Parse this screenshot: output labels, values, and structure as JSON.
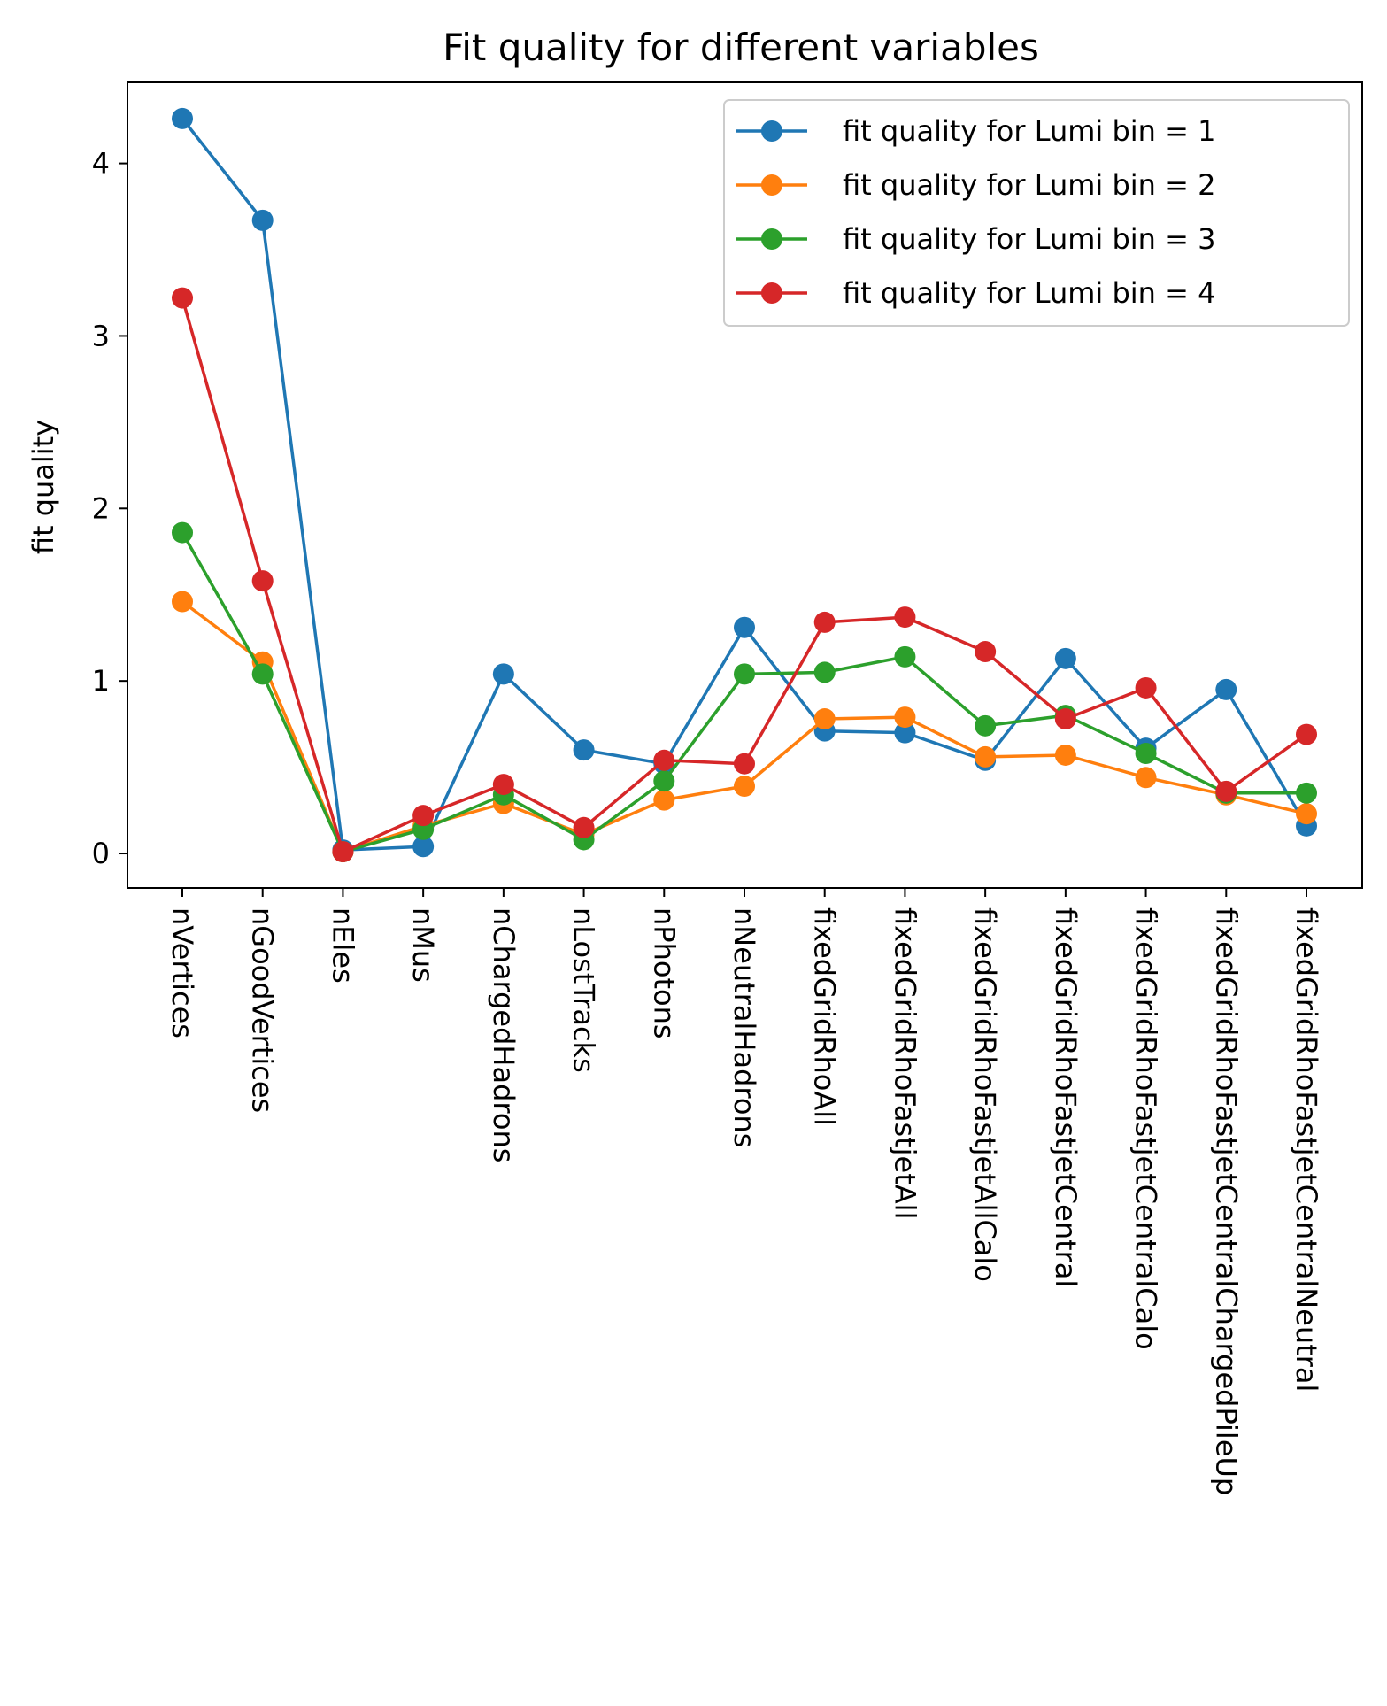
{
  "chart_data": {
    "type": "line",
    "title": "Fit quality for different variables",
    "xlabel": "",
    "ylabel": "fit quality",
    "ylim": [
      -0.2,
      4.47
    ],
    "yticks": [
      0,
      1,
      2,
      3,
      4
    ],
    "grid": false,
    "legend_position": "top-right",
    "categories": [
      "nVertices",
      "nGoodVertices",
      "nEles",
      "nMus",
      "nChargedHadrons",
      "nLostTracks",
      "nPhotons",
      "nNeutralHadrons",
      "fixedGridRhoAll",
      "fixedGridRhoFastjetAll",
      "fixedGridRhoFastjetAllCalo",
      "fixedGridRhoFastjetCentral",
      "fixedGridRhoFastjetCentralCalo",
      "fixedGridRhoFastjetCentralChargedPileUp",
      "fixedGridRhoFastjetCentralNeutral"
    ],
    "series": [
      {
        "name": "fit quality for Lumi bin = 1",
        "color": "#1f77b4",
        "values": [
          4.26,
          3.67,
          0.02,
          0.04,
          1.04,
          0.6,
          0.52,
          1.31,
          0.71,
          0.7,
          0.54,
          1.13,
          0.61,
          0.95,
          0.16
        ]
      },
      {
        "name": "fit quality for Lumi bin = 2",
        "color": "#ff7f0e",
        "values": [
          1.46,
          1.11,
          0.01,
          0.16,
          0.29,
          0.11,
          0.31,
          0.39,
          0.78,
          0.79,
          0.56,
          0.57,
          0.44,
          0.34,
          0.23
        ]
      },
      {
        "name": "fit quality for Lumi bin = 3",
        "color": "#2ca02c",
        "values": [
          1.86,
          1.04,
          0.01,
          0.14,
          0.34,
          0.08,
          0.42,
          1.04,
          1.05,
          1.14,
          0.74,
          0.8,
          0.58,
          0.35,
          0.35
        ]
      },
      {
        "name": "fit quality for Lumi bin = 4",
        "color": "#d62728",
        "values": [
          3.22,
          1.58,
          0.01,
          0.22,
          0.4,
          0.15,
          0.54,
          0.52,
          1.34,
          1.37,
          1.17,
          0.78,
          0.96,
          0.36,
          0.69
        ]
      }
    ]
  }
}
